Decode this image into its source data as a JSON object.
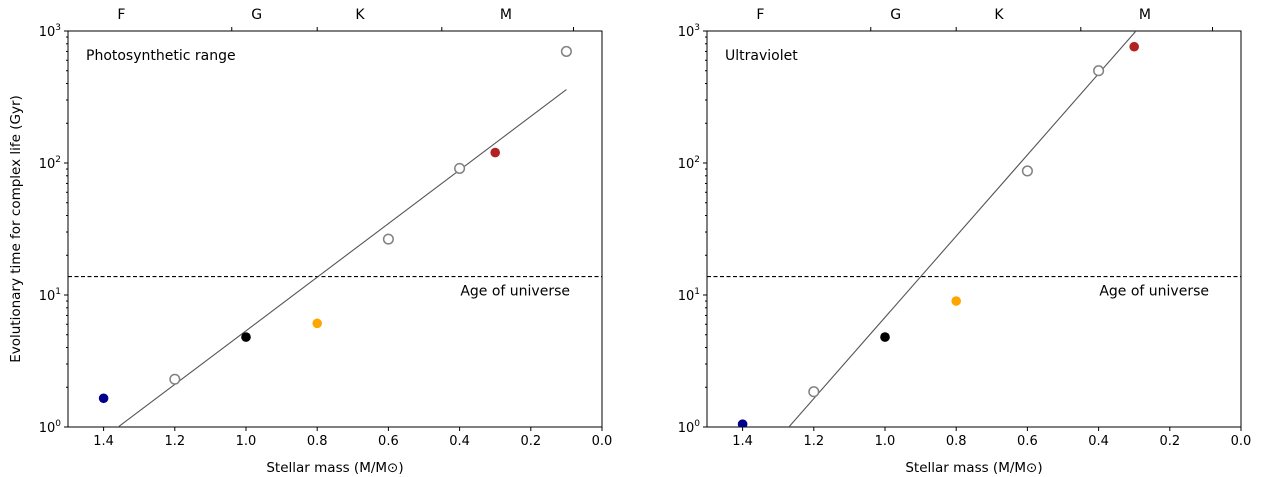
{
  "chart_data": [
    {
      "type": "scatter",
      "panel_label": "Photosynthetic range",
      "xlabel": "Stellar mass (M/M⊙)",
      "ylabel": "Evolutionary time for complex life (Gyr)",
      "xlim": [
        1.5,
        0.0
      ],
      "ylim": [
        1,
        1000
      ],
      "yscale": "log",
      "xticks": [
        "1.4",
        "1.2",
        "1.0",
        "0.8",
        "0.6",
        "0.4",
        "0.2",
        "0.0"
      ],
      "yticks": [
        "10^0",
        "10^1",
        "10^2",
        "10^3"
      ],
      "top_axis_labels": [
        {
          "label": "F",
          "x": 1.35
        },
        {
          "label": "G",
          "x": 0.97
        },
        {
          "label": "K",
          "x": 0.68
        },
        {
          "label": "M",
          "x": 0.27
        }
      ],
      "top_axis_ticks": [
        1.04,
        0.8,
        0.45,
        0.08
      ],
      "reference_line": {
        "y": 13.8,
        "label": "Age of universe",
        "style": "dashed"
      },
      "fit_line": {
        "x": [
          1.37,
          0.1
        ],
        "y": [
          0.95,
          360
        ]
      },
      "points": [
        {
          "x": 1.4,
          "y": 1.65,
          "color": "#00008b",
          "filled": true
        },
        {
          "x": 1.2,
          "y": 2.3,
          "color": "#808080",
          "filled": false
        },
        {
          "x": 1.0,
          "y": 4.8,
          "color": "#000000",
          "filled": true
        },
        {
          "x": 0.8,
          "y": 6.1,
          "color": "#ffa500",
          "filled": true
        },
        {
          "x": 0.6,
          "y": 26.5,
          "color": "#808080",
          "filled": false
        },
        {
          "x": 0.4,
          "y": 91,
          "color": "#808080",
          "filled": false
        },
        {
          "x": 0.3,
          "y": 120,
          "color": "#b22222",
          "filled": true
        },
        {
          "x": 0.1,
          "y": 700,
          "color": "#808080",
          "filled": false
        }
      ]
    },
    {
      "type": "scatter",
      "panel_label": "Ultraviolet",
      "xlabel": "Stellar mass (M/M⊙)",
      "ylabel": "",
      "xlim": [
        1.5,
        0.0
      ],
      "ylim": [
        1,
        1000
      ],
      "yscale": "log",
      "xticks": [
        "1.4",
        "1.2",
        "1.0",
        "0.8",
        "0.6",
        "0.4",
        "0.2",
        "0.0"
      ],
      "yticks": [
        "10^0",
        "10^1",
        "10^2",
        "10^3"
      ],
      "top_axis_labels": [
        {
          "label": "F",
          "x": 1.35
        },
        {
          "label": "G",
          "x": 0.97
        },
        {
          "label": "K",
          "x": 0.68
        },
        {
          "label": "M",
          "x": 0.27
        }
      ],
      "top_axis_ticks": [
        1.04,
        0.8,
        0.45,
        0.08
      ],
      "reference_line": {
        "y": 13.8,
        "label": "Age of universe",
        "style": "dashed"
      },
      "fit_line": {
        "x": [
          1.27,
          0.295
        ],
        "y": [
          1.0,
          1000
        ]
      },
      "points": [
        {
          "x": 1.4,
          "y": 1.05,
          "color": "#00008b",
          "filled": true
        },
        {
          "x": 1.2,
          "y": 1.85,
          "color": "#808080",
          "filled": false
        },
        {
          "x": 1.0,
          "y": 4.8,
          "color": "#000000",
          "filled": true
        },
        {
          "x": 0.8,
          "y": 9.0,
          "color": "#ffa500",
          "filled": true
        },
        {
          "x": 0.6,
          "y": 87,
          "color": "#808080",
          "filled": false
        },
        {
          "x": 0.4,
          "y": 500,
          "color": "#808080",
          "filled": false
        },
        {
          "x": 0.3,
          "y": 760,
          "color": "#b22222",
          "filled": true
        }
      ]
    }
  ]
}
